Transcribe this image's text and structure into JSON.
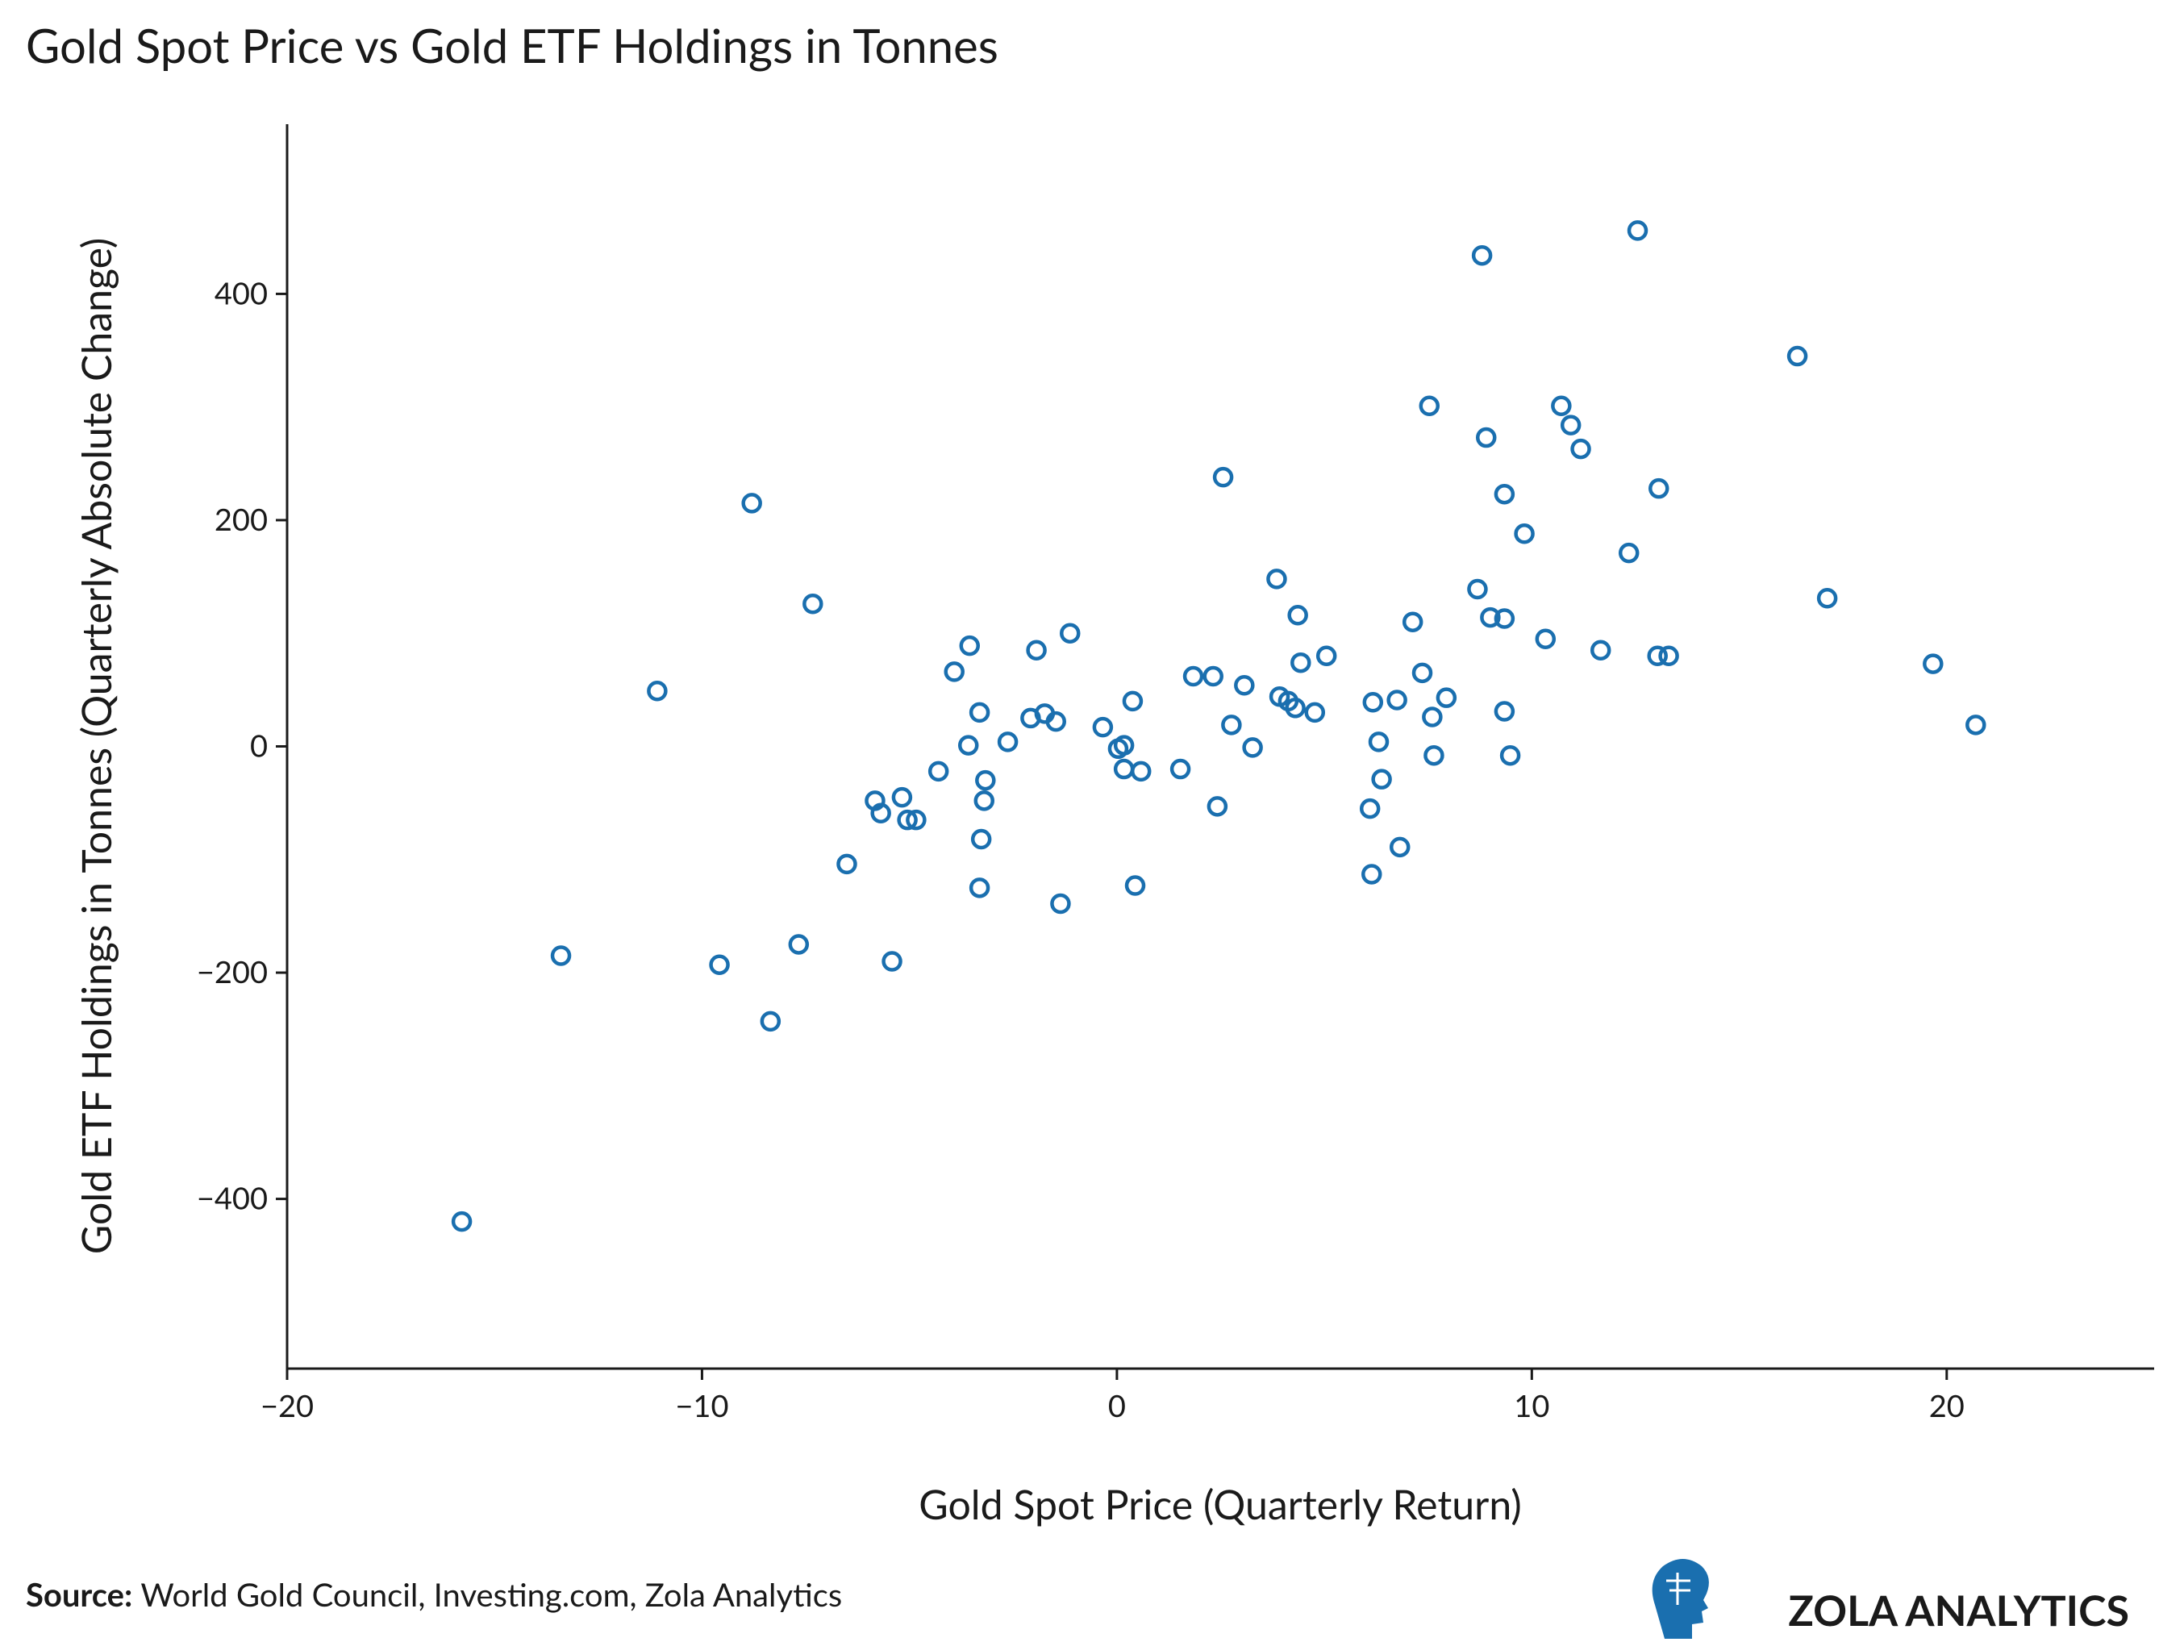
{
  "chart_data": {
    "type": "scatter",
    "title": "Gold Spot Price vs Gold ETF Holdings in Tonnes",
    "x_label": "Gold Spot Price  (Quarterly Return)",
    "y_label": "Gold ETF Holdings in Tonnes (Quarterly Absolute Change)",
    "source_label": "Source:",
    "source": "World Gold Council, Investing.com, Zola Analytics",
    "brand": "ZOLA ANALYTICS",
    "color": "#1a6faf",
    "xlim": [
      -20,
      25
    ],
    "ylim": [
      -550,
      550
    ],
    "xticks": [
      {
        "value": -20,
        "label": "−20"
      },
      {
        "value": -10,
        "label": "−10"
      },
      0,
      10,
      20
    ],
    "yticks": [
      {
        "value": -400,
        "label": "−400"
      },
      {
        "value": -200,
        "label": "−200"
      },
      0,
      200,
      400
    ],
    "x": [
      -15.79,
      -13.4,
      -11.08,
      -9.58,
      -8.8,
      -8.35,
      -7.67,
      -7.33,
      -6.51,
      -5.83,
      -5.69,
      -5.42,
      -5.18,
      -5.05,
      -4.84,
      -4.3,
      -3.92,
      -3.55,
      -3.58,
      -3.31,
      -3.27,
      -3.31,
      -3.17,
      -3.2,
      -2.63,
      -2.08,
      -1.94,
      -1.74,
      -1.47,
      -1.36,
      -1.13,
      -0.34,
      0.03,
      0.17,
      0.17,
      0.38,
      0.44,
      0.58,
      1.53,
      1.84,
      2.32,
      2.42,
      2.56,
      2.76,
      3.07,
      3.27,
      3.85,
      3.92,
      4.13,
      4.3,
      4.36,
      4.43,
      4.77,
      5.05,
      6.1,
      6.14,
      6.17,
      6.31,
      6.38,
      6.75,
      6.82,
      7.13,
      7.36,
      7.53,
      7.6,
      7.64,
      7.94,
      8.69,
      8.8,
      8.9,
      9.0,
      9.34,
      9.34,
      9.34,
      9.48,
      9.82,
      10.33,
      10.71,
      10.94,
      11.18,
      11.66,
      12.34,
      12.55,
      13.03,
      13.06,
      13.3,
      16.4,
      17.12,
      19.67,
      20.7
    ],
    "values": [
      -420,
      -185,
      49,
      -193,
      215,
      -243,
      -175,
      126,
      -104,
      -48,
      -59,
      -190,
      -45,
      -65,
      -65,
      -22,
      66,
      89,
      1,
      30,
      -82,
      -125,
      -30,
      -48,
      4,
      25,
      85,
      29,
      22,
      -139,
      100,
      17,
      -2,
      1,
      -20,
      40,
      -123,
      -22,
      -20,
      62,
      62,
      -53,
      238,
      19,
      54,
      -1,
      148,
      44,
      40,
      34,
      116,
      74,
      30,
      80,
      -55,
      -113,
      39,
      4,
      -29,
      41,
      -89,
      110,
      65,
      301,
      26,
      -8,
      43,
      139,
      434,
      273,
      114,
      223,
      113,
      31,
      -8,
      188,
      95,
      301,
      284,
      263,
      85,
      171,
      456,
      80,
      228,
      80,
      345,
      131,
      73,
      19
    ]
  }
}
